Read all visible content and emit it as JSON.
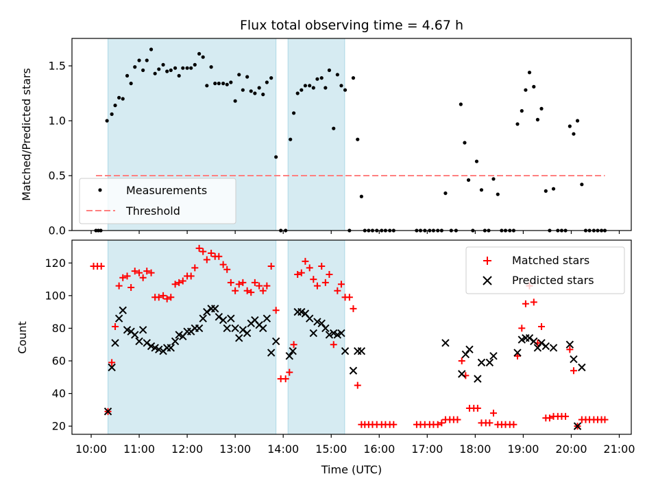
{
  "figure_title": "Flux total observing time = 4.67 h",
  "colors": {
    "span_fill": "#add8e6",
    "measurement": "#000000",
    "threshold": "#ff7f7f",
    "matched": "#ff0000",
    "predicted": "#000000"
  },
  "chart_data": [
    {
      "type": "scatter",
      "ylabel": "Matched/Predicted stars",
      "ylim": [
        0,
        1.75
      ],
      "yticks": [
        0.0,
        0.5,
        1.0,
        1.5
      ],
      "yticklabels": [
        "0.0",
        "0.5",
        "1.0",
        "1.5"
      ],
      "xlim_hours": [
        9.6,
        21.25
      ],
      "xticks_hours": [
        10,
        11,
        12,
        13,
        14,
        15,
        16,
        17,
        18,
        19,
        20,
        21
      ],
      "grid": false,
      "legend": {
        "position": "lower-left",
        "entries": [
          {
            "label": "Measurements",
            "marker": "dot"
          },
          {
            "label": "Threshold",
            "marker": "dashed-line"
          }
        ]
      },
      "spans_hours": [
        [
          10.35,
          13.85
        ],
        [
          14.1,
          15.28
        ]
      ],
      "threshold": {
        "value": 0.5,
        "x_hours": [
          10.1,
          20.7
        ]
      },
      "measurements": {
        "x_hours": [
          10.1,
          10.15,
          10.2,
          10.33,
          10.43,
          10.5,
          10.58,
          10.66,
          10.75,
          10.83,
          10.91,
          11.0,
          11.08,
          11.16,
          11.25,
          11.33,
          11.41,
          11.5,
          11.58,
          11.66,
          11.75,
          11.83,
          11.91,
          12.0,
          12.08,
          12.16,
          12.25,
          12.33,
          12.41,
          12.5,
          12.58,
          12.66,
          12.75,
          12.83,
          12.91,
          13.0,
          13.08,
          13.16,
          13.25,
          13.33,
          13.41,
          13.5,
          13.58,
          13.66,
          13.75,
          13.85,
          13.95,
          14.05,
          14.15,
          14.22,
          14.3,
          14.38,
          14.46,
          14.55,
          14.63,
          14.71,
          14.8,
          14.88,
          14.96,
          15.05,
          15.13,
          15.21,
          15.29,
          15.38,
          15.46,
          15.55,
          15.63,
          15.7,
          15.78,
          15.86,
          15.95,
          16.05,
          16.13,
          16.22,
          16.3,
          16.78,
          16.86,
          16.95,
          17.05,
          17.13,
          17.22,
          17.3,
          17.38,
          17.5,
          17.6,
          17.7,
          17.78,
          17.86,
          17.95,
          18.03,
          18.13,
          18.2,
          18.28,
          18.38,
          18.47,
          18.55,
          18.63,
          18.72,
          18.8,
          18.88,
          18.97,
          19.05,
          19.13,
          19.22,
          19.3,
          19.38,
          19.47,
          19.55,
          19.63,
          19.72,
          19.8,
          19.88,
          19.97,
          20.05,
          20.13,
          20.22,
          20.3,
          20.38,
          20.47,
          20.55,
          20.63,
          20.7
        ],
        "values": [
          0.0,
          0.0,
          0.0,
          1.0,
          1.06,
          1.14,
          1.21,
          1.2,
          1.41,
          1.34,
          1.49,
          1.55,
          1.46,
          1.55,
          1.65,
          1.43,
          1.47,
          1.51,
          1.45,
          1.46,
          1.48,
          1.41,
          1.48,
          1.48,
          1.48,
          1.51,
          1.61,
          1.58,
          1.32,
          1.49,
          1.34,
          1.34,
          1.34,
          1.33,
          1.35,
          1.18,
          1.42,
          1.28,
          1.4,
          1.27,
          1.25,
          1.3,
          1.24,
          1.35,
          1.39,
          0.67,
          0.0,
          0.0,
          0.83,
          1.07,
          1.25,
          1.28,
          1.32,
          1.32,
          1.3,
          1.38,
          1.39,
          1.3,
          1.46,
          0.93,
          1.42,
          1.32,
          1.28,
          0.0,
          1.39,
          0.83,
          0.31,
          0.0,
          0.0,
          0.0,
          0.0,
          0.0,
          0.0,
          0.0,
          0.0,
          0.0,
          0.0,
          0.0,
          0.0,
          0.0,
          0.0,
          0.0,
          0.34,
          0.0,
          0.0,
          1.15,
          0.8,
          0.46,
          0.0,
          0.63,
          0.37,
          0.0,
          0.0,
          0.47,
          0.33,
          0.0,
          0.0,
          0.0,
          0.0,
          0.97,
          1.09,
          1.28,
          1.44,
          1.31,
          1.01,
          1.11,
          0.36,
          0.0,
          0.38,
          0.0,
          0.0,
          0.0,
          0.95,
          0.88,
          1.0,
          0.42,
          0.0,
          0.0,
          0.0,
          0.0,
          0.0,
          0.0
        ]
      }
    },
    {
      "type": "scatter",
      "xlabel": "Time (UTC)",
      "ylabel": "Count",
      "ylim": [
        15,
        134
      ],
      "yticks": [
        20,
        40,
        60,
        80,
        100,
        120
      ],
      "yticklabels": [
        "20",
        "40",
        "60",
        "80",
        "100",
        "120"
      ],
      "xlim_hours": [
        9.6,
        21.25
      ],
      "xticks_hours": [
        10,
        11,
        12,
        13,
        14,
        15,
        16,
        17,
        18,
        19,
        20,
        21
      ],
      "xticklabels": [
        "10:00",
        "11:00",
        "12:00",
        "13:00",
        "14:00",
        "15:00",
        "16:00",
        "17:00",
        "18:00",
        "19:00",
        "20:00",
        "21:00"
      ],
      "grid": false,
      "legend": {
        "position": "upper-right",
        "entries": [
          {
            "label": "Matched stars",
            "marker": "plus"
          },
          {
            "label": "Predicted stars",
            "marker": "x"
          }
        ]
      },
      "spans_hours": [
        [
          10.35,
          13.85
        ],
        [
          14.1,
          15.28
        ]
      ],
      "series": [
        {
          "name": "Matched stars",
          "marker": "plus",
          "x_hours": [
            10.05,
            10.13,
            10.21,
            10.35,
            10.43,
            10.5,
            10.58,
            10.66,
            10.75,
            10.83,
            10.91,
            11.0,
            11.08,
            11.16,
            11.25,
            11.33,
            11.41,
            11.5,
            11.58,
            11.66,
            11.75,
            11.83,
            11.91,
            12.0,
            12.08,
            12.16,
            12.25,
            12.33,
            12.41,
            12.5,
            12.58,
            12.66,
            12.75,
            12.83,
            12.91,
            13.0,
            13.08,
            13.16,
            13.25,
            13.33,
            13.41,
            13.5,
            13.58,
            13.66,
            13.75,
            13.85,
            13.95,
            14.05,
            14.13,
            14.22,
            14.3,
            14.38,
            14.46,
            14.55,
            14.63,
            14.71,
            14.8,
            14.88,
            14.96,
            15.05,
            15.13,
            15.21,
            15.29,
            15.38,
            15.46,
            15.55,
            15.63,
            15.7,
            15.78,
            15.86,
            15.95,
            16.05,
            16.13,
            16.22,
            16.3,
            16.78,
            16.86,
            16.95,
            17.05,
            17.13,
            17.22,
            17.3,
            17.38,
            17.47,
            17.55,
            17.63,
            17.72,
            17.8,
            17.88,
            17.97,
            18.05,
            18.13,
            18.22,
            18.3,
            18.38,
            18.47,
            18.55,
            18.63,
            18.72,
            18.8,
            18.88,
            18.97,
            19.05,
            19.13,
            19.22,
            19.3,
            19.38,
            19.47,
            19.55,
            19.63,
            19.72,
            19.8,
            19.88,
            19.97,
            20.05,
            20.13,
            20.22,
            20.3,
            20.38,
            20.47,
            20.55,
            20.63,
            20.7
          ],
          "values": [
            118,
            118,
            118,
            29,
            59,
            81,
            106,
            111,
            112,
            105,
            115,
            114,
            111,
            115,
            114,
            99,
            99,
            100,
            98,
            99,
            107,
            108,
            109,
            112,
            112,
            117,
            129,
            127,
            122,
            126,
            124,
            124,
            119,
            116,
            108,
            103,
            107,
            108,
            103,
            102,
            108,
            106,
            103,
            106,
            118,
            91,
            49,
            49,
            53,
            70,
            113,
            114,
            121,
            117,
            110,
            106,
            118,
            108,
            113,
            70,
            103,
            107,
            99,
            99,
            92,
            45,
            21,
            21,
            21,
            21,
            21,
            21,
            21,
            21,
            21,
            21,
            21,
            21,
            21,
            21,
            21,
            22,
            24,
            24,
            24,
            24,
            60,
            51,
            31,
            31,
            31,
            22,
            22,
            22,
            28,
            21,
            21,
            21,
            21,
            21,
            63,
            80,
            95,
            106,
            96,
            71,
            81,
            25,
            25,
            26,
            26,
            26,
            26,
            67,
            54,
            20,
            24,
            24,
            24,
            24,
            24,
            24,
            24
          ]
        },
        {
          "name": "Predicted stars",
          "marker": "x",
          "x_hours": [
            10.35,
            10.43,
            10.5,
            10.58,
            10.66,
            10.75,
            10.83,
            10.91,
            11.0,
            11.08,
            11.16,
            11.25,
            11.33,
            11.41,
            11.5,
            11.58,
            11.66,
            11.75,
            11.83,
            11.91,
            12.0,
            12.08,
            12.16,
            12.25,
            12.33,
            12.41,
            12.5,
            12.58,
            12.66,
            12.75,
            12.83,
            12.91,
            13.0,
            13.08,
            13.16,
            13.25,
            13.33,
            13.41,
            13.5,
            13.58,
            13.66,
            13.75,
            13.85,
            14.13,
            14.2,
            14.3,
            14.38,
            14.46,
            14.55,
            14.63,
            14.71,
            14.8,
            14.88,
            14.96,
            15.05,
            15.13,
            15.21,
            15.29,
            15.46,
            15.55,
            15.63,
            17.38,
            17.72,
            17.8,
            17.88,
            18.05,
            18.13,
            18.3,
            18.38,
            18.88,
            18.97,
            19.05,
            19.13,
            19.22,
            19.3,
            19.38,
            19.47,
            19.63,
            19.97,
            20.05,
            20.13,
            20.22
          ],
          "values": [
            29,
            56,
            71,
            86,
            91,
            79,
            78,
            76,
            72,
            79,
            71,
            69,
            68,
            67,
            66,
            68,
            68,
            72,
            76,
            75,
            78,
            78,
            80,
            80,
            86,
            90,
            92,
            92,
            87,
            85,
            80,
            86,
            80,
            74,
            79,
            77,
            83,
            85,
            82,
            80,
            86,
            65,
            72,
            63,
            66,
            90,
            90,
            89,
            86,
            77,
            84,
            83,
            80,
            76,
            77,
            76,
            77,
            66,
            54,
            66,
            66,
            71,
            52,
            64,
            67,
            49,
            59,
            59,
            63,
            65,
            73,
            74,
            74,
            72,
            68,
            71,
            69,
            68,
            70,
            61,
            20,
            56
          ]
        }
      ]
    }
  ]
}
